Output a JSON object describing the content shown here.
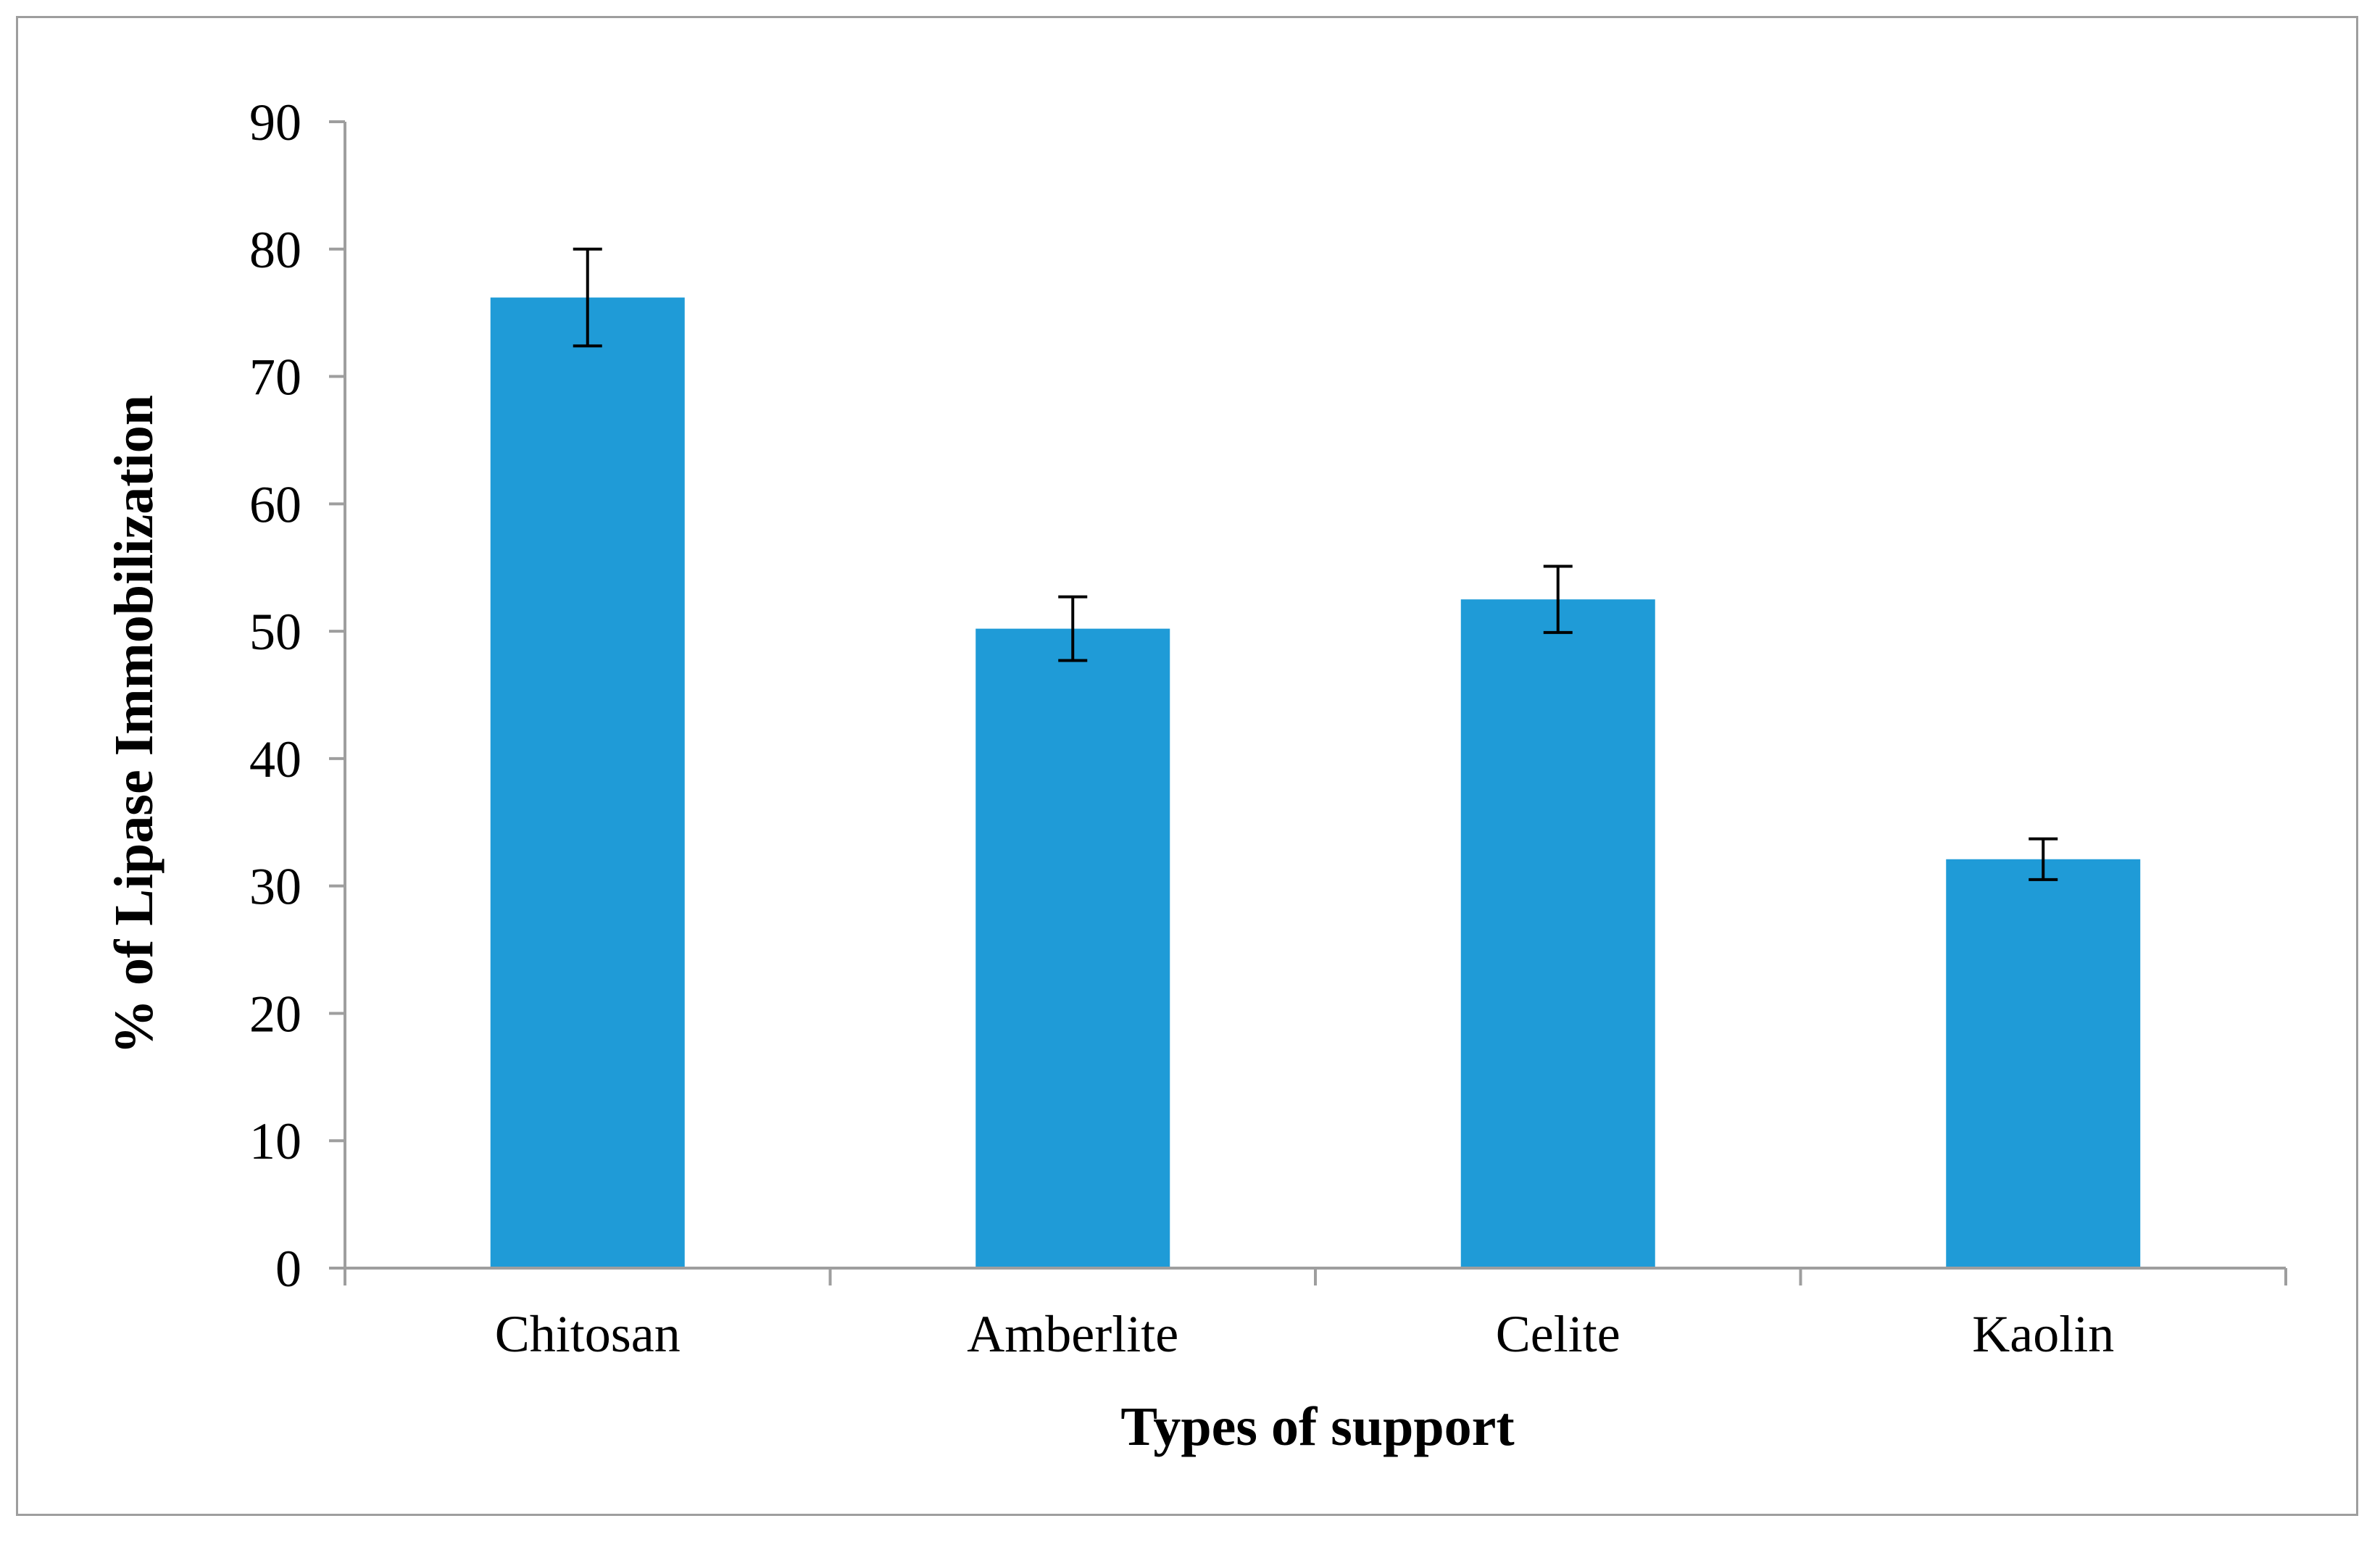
{
  "chart_data": {
    "type": "bar",
    "categories": [
      "Chitosan",
      "Amberlite",
      "Celite",
      "Kaolin"
    ],
    "values": [
      76.2,
      50.2,
      52.5,
      32.1
    ],
    "errors": [
      3.8,
      2.5,
      2.6,
      1.6
    ],
    "title": "",
    "xlabel": "Types of support",
    "ylabel": "% of Lipase Immobilization",
    "ylim": [
      0,
      90
    ],
    "yticks": [
      0,
      10,
      20,
      30,
      40,
      50,
      60,
      70,
      80,
      90
    ],
    "grid": false,
    "legend": "none",
    "bar_color": "#1f9bd7",
    "axis_color": "#9e9e9e",
    "error_bar_color": "#000000"
  }
}
